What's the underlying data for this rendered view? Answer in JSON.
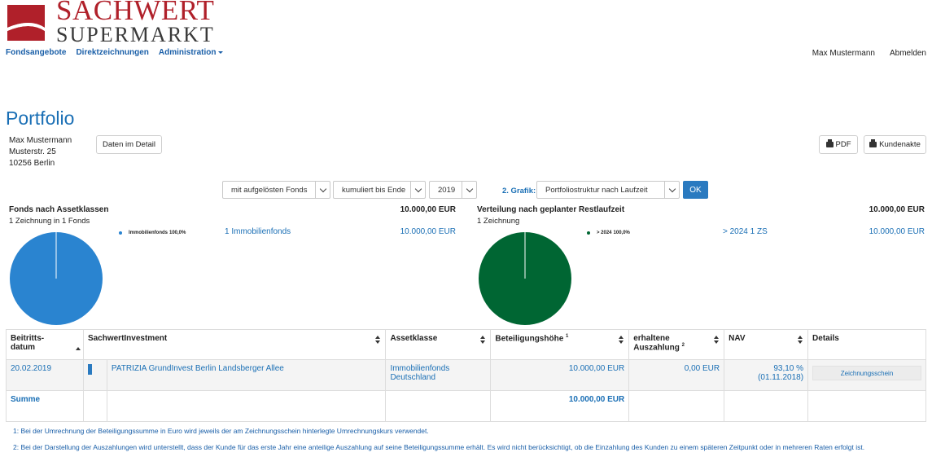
{
  "brand": {
    "logo_line1": "SACHWERT",
    "logo_line2": "SUPERMARKT",
    "primary_color": "#1a6fb5",
    "logo_red": "#b0202a"
  },
  "nav": {
    "items": [
      "Fondsangebote",
      "Direktzeichnungen",
      "Administration"
    ],
    "user_name": "Max Mustermann",
    "logout": "Abmelden"
  },
  "page": {
    "title": "Portfolio",
    "address": [
      "Max Mustermann",
      "Musterstr. 25",
      "10256 Berlin"
    ],
    "detail_button": "Daten im Detail",
    "pdf_button": "PDF",
    "akte_button": "Kundenakte"
  },
  "filters": {
    "fonds_mode": "mit aufgelösten Fonds",
    "kumulation": "kumuliert bis Ende",
    "year": "2019",
    "grafik_label": "2. Grafik:",
    "grafik_value": "Portfoliostruktur nach Laufzeit",
    "ok": "OK"
  },
  "chart_left": {
    "title": "Fonds nach Assetklassen",
    "subtitle": "1 Zeichnung in 1 Fonds",
    "total": "10.000,00 EUR",
    "legend_label": "Immobilienfonds",
    "legend_pct": "100,0%",
    "link_label": "1 Immobilienfonds",
    "link_amount": "10.000,00 EUR",
    "color": "#2a84d0"
  },
  "chart_right": {
    "title": "Verteilung nach geplanter Restlaufzeit",
    "subtitle": "1 Zeichnung",
    "total": "10.000,00 EUR",
    "legend_label": "> 2024",
    "legend_pct": "100,0%",
    "link_label": "> 2024 1 ZS",
    "link_amount": "10.000,00 EUR",
    "color": "#006633"
  },
  "chart_data": [
    {
      "type": "pie",
      "title": "Fonds nach Assetklassen",
      "labels": [
        "Immobilienfonds"
      ],
      "values": [
        100.0
      ]
    },
    {
      "type": "pie",
      "title": "Verteilung nach geplanter Restlaufzeit",
      "labels": [
        "> 2024"
      ],
      "values": [
        100.0
      ]
    }
  ],
  "table": {
    "headers": {
      "beitritt_l1": "Beitritts-",
      "beitritt_l2": "datum",
      "investment": "SachwertInvestment",
      "asset": "Assetklasse",
      "beteiligung": "Beteiligungshöhe",
      "beteiligung_sup": "1",
      "auszahlung_l1": "erhaltene",
      "auszahlung_l2": "Auszahlung",
      "auszahlung_sup": "2",
      "nav": "NAV",
      "details": "Details"
    },
    "row": {
      "datum": "20.02.2019",
      "investment": "PATRIZIA GrundInvest Berlin Landsberger Allee",
      "asset_l1": "Immobilienfonds",
      "asset_l2": "Deutschland",
      "beteiligung": "10.000,00 EUR",
      "auszahlung": "0,00 EUR",
      "nav_pct": "93,10 %",
      "nav_date": "(01.11.2018)",
      "details_button": "Zeichnungsschein"
    },
    "sum": {
      "label": "Summe",
      "beteiligung": "10.000,00 EUR"
    }
  },
  "footnotes": {
    "f1": "1: Bei der Umrechnung der Beteiligungssumme in Euro wird jeweils der am Zeichnungsschein hinterlegte Umrechnungskurs verwendet.",
    "f2": "2: Bei der Darstellung der Auszahlungen wird unterstellt, dass der Kunde für das erste Jahr eine anteilige Auszahlung auf seine Beteiligungssumme erhält. Es wird nicht berücksichtigt, ob die Einzahlung des Kunden zu einem späteren Zeitpunkt oder in mehreren Raten erfolgt ist."
  }
}
